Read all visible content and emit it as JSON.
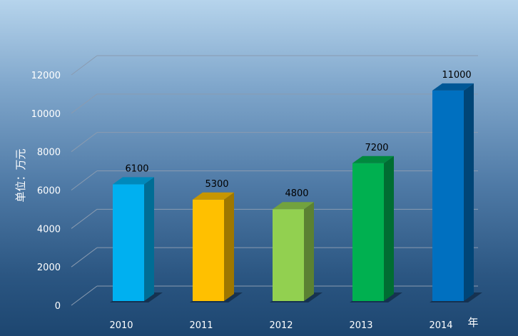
{
  "chart_data": {
    "type": "bar",
    "categories": [
      "2010",
      "2011",
      "2012",
      "2013",
      "2014"
    ],
    "values": [
      6100,
      5300,
      4800,
      7200,
      11000
    ],
    "ylabel": "单位：万元",
    "xlabel": "年",
    "ylim": [
      0,
      12000
    ],
    "yticks": [
      "0",
      "2000",
      "4000",
      "6000",
      "8000",
      "10000",
      "12000"
    ],
    "data_labels": [
      "6100",
      "5300",
      "4800",
      "7200",
      "11000"
    ],
    "colors": [
      "#00b0f0",
      "#ffc000",
      "#92d050",
      "#00b050",
      "#0070c0"
    ],
    "grid": true,
    "legend": "none",
    "style": "3d-column"
  }
}
